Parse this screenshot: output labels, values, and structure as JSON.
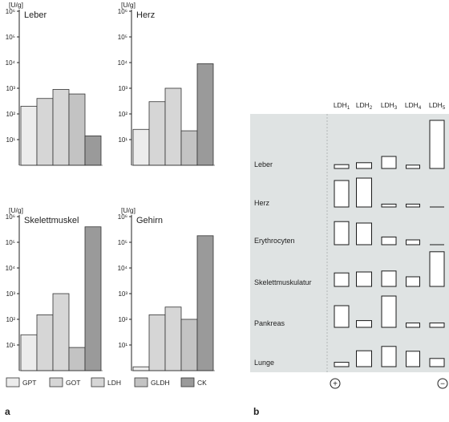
{
  "figure": {
    "label_a": "a",
    "label_b": "b"
  },
  "chart_data": [
    {
      "type": "bar",
      "scale": "log",
      "ylabel": "[U/g]",
      "yticks": [
        "10¹",
        "10²",
        "10³",
        "10⁴",
        "10⁵",
        "10⁶"
      ],
      "ylim": [
        1,
        1000000
      ],
      "panels": [
        {
          "title": "Leber",
          "values": [
            200,
            400,
            900,
            600,
            14
          ]
        },
        {
          "title": "Herz",
          "values": [
            25,
            300,
            1000,
            22,
            9000
          ]
        },
        {
          "title": "Skelettmuskel",
          "values": [
            25,
            150,
            1000,
            8,
            400000
          ]
        },
        {
          "title": "Gehirn",
          "values": [
            1.3,
            150,
            300,
            100,
            180000
          ]
        }
      ],
      "legend": [
        {
          "name": "GPT",
          "color": "#ececec"
        },
        {
          "name": "GOT",
          "color": "#d6d6d6"
        },
        {
          "name": "LDH",
          "color": "#d6d6d6"
        },
        {
          "name": "GLDH",
          "color": "#c3c3c3"
        },
        {
          "name": "CK",
          "color": "#9a9a9a"
        }
      ]
    },
    {
      "type": "table",
      "columns": [
        "LDH",
        "LDH",
        "LDH",
        "LDH",
        "LDH"
      ],
      "column_subscripts": [
        "1",
        "2",
        "3",
        "4",
        "5"
      ],
      "rows": [
        {
          "name": "Leber",
          "values": [
            0.08,
            0.12,
            0.25,
            0.07,
            1.0
          ]
        },
        {
          "name": "Herz",
          "values": [
            0.55,
            0.6,
            0.06,
            0.06,
            0.0
          ]
        },
        {
          "name": "Erythrocyten",
          "values": [
            0.48,
            0.45,
            0.16,
            0.1,
            0.0
          ]
        },
        {
          "name": "Skelettmuskulatur",
          "values": [
            0.28,
            0.3,
            0.32,
            0.2,
            0.72
          ]
        },
        {
          "name": "Pankreas",
          "values": [
            0.45,
            0.14,
            0.65,
            0.09,
            0.09
          ]
        },
        {
          "name": "Lunge",
          "values": [
            0.09,
            0.33,
            0.42,
            0.32,
            0.17
          ]
        }
      ],
      "poles": {
        "anode": "+",
        "cathode": "−"
      },
      "colors": {
        "background": "#dfe3e3",
        "box_fill": "#ffffff",
        "box_stroke": "#1a1a1a"
      }
    }
  ]
}
